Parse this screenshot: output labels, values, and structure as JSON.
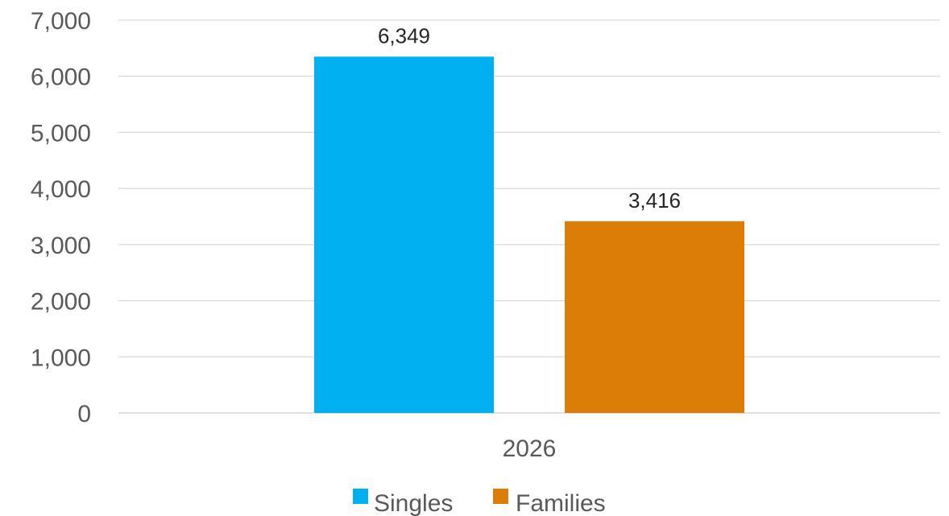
{
  "chart_data": {
    "type": "bar",
    "categories": [
      "2026"
    ],
    "series": [
      {
        "name": "Singles",
        "values": [
          6349
        ],
        "label": "6,349",
        "color": "#00B0F0"
      },
      {
        "name": "Families",
        "values": [
          3416
        ],
        "label": "3,416",
        "color": "#DC7D07"
      }
    ],
    "title": "",
    "xlabel": "",
    "ylabel": "",
    "ylim": [
      0,
      7000
    ],
    "y_ticks": [
      0,
      1000,
      2000,
      3000,
      4000,
      5000,
      6000,
      7000
    ],
    "y_tick_labels": [
      "0",
      "1,000",
      "2,000",
      "3,000",
      "4,000",
      "5,000",
      "6,000",
      "7,000"
    ],
    "grid": true,
    "legend_position": "bottom",
    "gridline_color": "#D9D9D9"
  }
}
